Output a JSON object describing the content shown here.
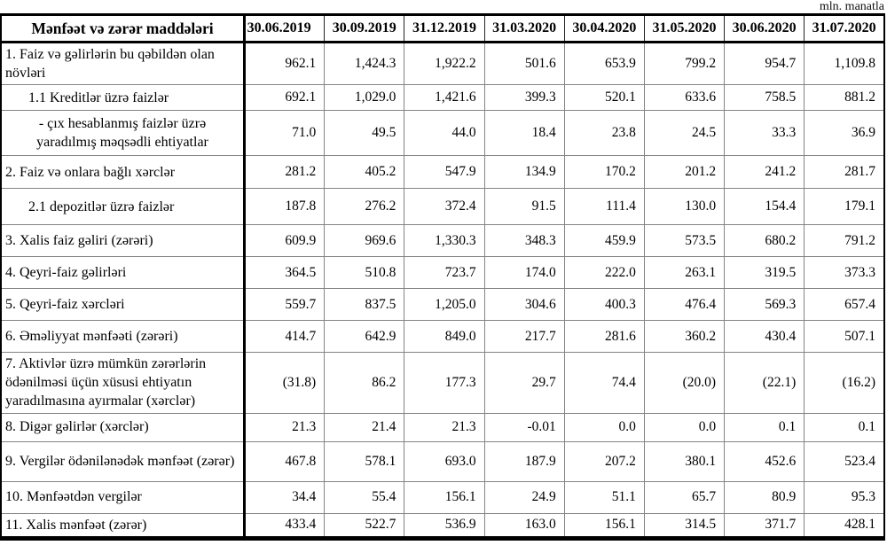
{
  "meta": {
    "unit_label": "mln. manatla"
  },
  "table": {
    "header": {
      "items_label": "Mənfəət və zərər maddələri",
      "dates": [
        "30.06.2019",
        "30.09.2019",
        "31.12.2019",
        "31.03.2020",
        "30.04.2020",
        "31.05.2020",
        "30.06.2020",
        "31.07.2020"
      ]
    },
    "rows": [
      {
        "label": "1. Faiz və gəlirlərin bu qəbildən olan növləri",
        "indent": "none",
        "values": [
          "962.1",
          "1,424.3",
          "1,922.2",
          "501.6",
          "653.9",
          "799.2",
          "954.7",
          "1,109.8"
        ]
      },
      {
        "label": "1.1 Kreditlər üzrə faizlər",
        "indent": "sub",
        "values": [
          "692.1",
          "1,029.0",
          "1,421.6",
          "399.3",
          "520.1",
          "633.6",
          "758.5",
          "881.2"
        ]
      },
      {
        "label": "-  çıx hesablanmış faizlər üzrə yaradılmış məqsədli ehtiyatlar",
        "indent": "dash",
        "values": [
          "71.0",
          "49.5",
          "44.0",
          "18.4",
          "23.8",
          "24.5",
          "33.3",
          "36.9"
        ]
      },
      {
        "label": "2. Faiz və onlara bağlı xərclər",
        "indent": "none",
        "values": [
          "281.2",
          "405.2",
          "547.9",
          "134.9",
          "170.2",
          "201.2",
          "241.2",
          "281.7"
        ]
      },
      {
        "label": "2.1 depozitlər üzrə faizlər",
        "indent": "sub",
        "values": [
          "187.8",
          "276.2",
          "372.4",
          "91.5",
          "111.4",
          "130.0",
          "154.4",
          "179.1"
        ]
      },
      {
        "label": "3. Xalis faiz gəliri (zərəri)",
        "indent": "none",
        "values": [
          "609.9",
          "969.6",
          "1,330.3",
          "348.3",
          "459.9",
          "573.5",
          "680.2",
          "791.2"
        ]
      },
      {
        "label": "4. Qeyri-faiz gəlirləri",
        "indent": "none",
        "values": [
          "364.5",
          "510.8",
          "723.7",
          "174.0",
          "222.0",
          "263.1",
          "319.5",
          "373.3"
        ]
      },
      {
        "label": "5. Qeyri-faiz xərcləri",
        "indent": "none",
        "values": [
          "559.7",
          "837.5",
          "1,205.0",
          "304.6",
          "400.3",
          "476.4",
          "569.3",
          "657.4"
        ]
      },
      {
        "label": "6. Əməliyyat mənfəəti (zərəri)",
        "indent": "none",
        "values": [
          "414.7",
          "642.9",
          "849.0",
          "217.7",
          "281.6",
          "360.2",
          "430.4",
          "507.1"
        ]
      },
      {
        "label": "7. Aktivlər üzrə mümkün zərərlərin ödənilməsi üçün xüsusi ehtiyatın yaradılmasına ayırmalar (xərclər)",
        "indent": "none",
        "values": [
          "(31.8)",
          "86.2",
          "177.3",
          "29.7",
          "74.4",
          "(20.0)",
          "(22.1)",
          "(16.2)"
        ]
      },
      {
        "label": "8. Digər gəlirlər (xərclər)",
        "indent": "none",
        "values": [
          "21.3",
          "21.4",
          "21.3",
          "-0.01",
          "0.0",
          "0.0",
          "0.1",
          "0.1"
        ]
      },
      {
        "label": "9. Vergilər ödənilənədək mənfəət (zərər)",
        "indent": "none",
        "values": [
          "467.8",
          "578.1",
          "693.0",
          "187.9",
          "207.2",
          "380.1",
          "452.6",
          "523.4"
        ]
      },
      {
        "label": "10. Mənfəətdən vergilər",
        "indent": "none",
        "values": [
          "34.4",
          "55.4",
          "156.1",
          "24.9",
          "51.1",
          "65.7",
          "80.9",
          "95.3"
        ]
      },
      {
        "label": "11. Xalis mənfəət (zərər)",
        "indent": "none",
        "values": [
          "433.4",
          "522.7",
          "536.9",
          "163.0",
          "156.1",
          "314.5",
          "371.7",
          "428.1"
        ]
      }
    ]
  }
}
